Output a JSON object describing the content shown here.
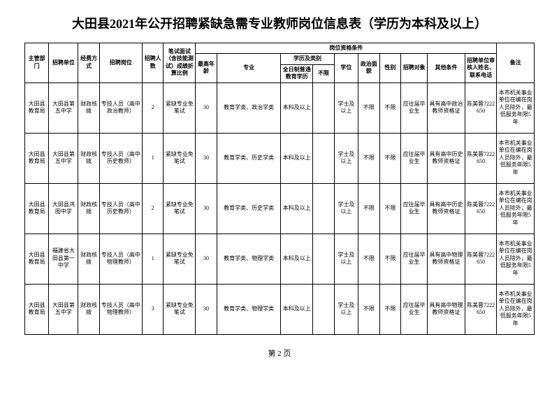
{
  "title": "大田县2021年公开招聘紧缺急需专业教师岗位信息表（学历为本科及以上）",
  "headers": {
    "col1": "主管部门",
    "col2": "招聘单位",
    "col3": "经费方式",
    "col4": "招聘岗位",
    "col5": "招聘人数",
    "col6": "笔试面试（含技能测试）成绩折算比例",
    "group_right": "岗位资格条件",
    "col7": "最高年龄",
    "col8": "专业",
    "group_edu": "学历及类别",
    "col9": "全日制普通教育学历",
    "col10": "不限",
    "col11": "学位",
    "col12": "政治面貌",
    "col13": "性别",
    "col14": "招聘对象",
    "col15": "其他条件",
    "col16": "招聘单位审核人姓名、联系电话",
    "col17": "备注"
  },
  "rows": [
    {
      "c1": "大田县教育局",
      "c2": "大田县第五中学",
      "c3": "财政核拨",
      "c4": "专技人员（高中政治教师）",
      "c5": "2",
      "c6": "紧缺专业免笔试",
      "c7": "30",
      "c8": "教育学类、政治学类",
      "c9": "本科及以上",
      "c10": "",
      "c11": "学士及以上",
      "c12": "不限",
      "c13": "不限",
      "c14": "应往届毕业生",
      "c15": "具有高中政治教师资格证",
      "c16": "陈美蓉7222650",
      "c17": "本市机关事业单位在编在岗人员除外，最低服务年限5年"
    },
    {
      "c1": "大田县教育局",
      "c2": "大田县第五中学",
      "c3": "财政核拨",
      "c4": "专技人员（高中历史教师）",
      "c5": "1",
      "c6": "紧缺专业免笔试",
      "c7": "30",
      "c8": "教育学类、历史学类",
      "c9": "本科及以上",
      "c10": "",
      "c11": "学士及以上",
      "c12": "不限",
      "c13": "不限",
      "c14": "应往届毕业生",
      "c15": "具有高中历史教师资格证",
      "c16": "陈美蓉7222650",
      "c17": "本市机关事业单位在编在岗人员除外，最低服务年限5年"
    },
    {
      "c1": "大田县教育局",
      "c2": "大田县鸿图中学",
      "c3": "财政核拨",
      "c4": "专技人员（高中历史教师）",
      "c5": "2",
      "c6": "紧缺专业免笔试",
      "c7": "30",
      "c8": "教育学类、历史学类",
      "c9": "本科及以上",
      "c10": "",
      "c11": "学士及以上",
      "c12": "不限",
      "c13": "不限",
      "c14": "应往届毕业生",
      "c15": "具有高中历史教师资格证",
      "c16": "陈美蓉7222650",
      "c17": "本市机关事业单位在编在岗人员除外，最低服务年限5年"
    },
    {
      "c1": "大田县教育局",
      "c2": "福建省大田县第一中学",
      "c3": "财政核拨",
      "c4": "专技人员（高中物理教师）",
      "c5": "1",
      "c6": "紧缺专业免笔试",
      "c7": "30",
      "c8": "教育学类、物理学类",
      "c9": "本科及以上",
      "c10": "",
      "c11": "学士及以上",
      "c12": "不限",
      "c13": "不限",
      "c14": "应往届毕业生",
      "c15": "具有高中物理教师资格证",
      "c16": "陈美蓉7222650",
      "c17": "本市机关事业单位在编在岗人员除外，最低服务年限5年"
    },
    {
      "c1": "大田县教育局",
      "c2": "大田县第五中学",
      "c3": "财政核拨",
      "c4": "专技人员（高中物理教师）",
      "c5": "3",
      "c6": "紧缺专业免笔试",
      "c7": "30",
      "c8": "教育学类、物理学类",
      "c9": "本科及以上",
      "c10": "",
      "c11": "学士及以上",
      "c12": "不限",
      "c13": "不限",
      "c14": "应往届毕业生",
      "c15": "具有高中物理教师资格证",
      "c16": "陈美蓉7222650",
      "c17": "本市机关事业单位在编在岗人员除外，最低服务年限5年"
    }
  ],
  "footer": "第 2 页"
}
